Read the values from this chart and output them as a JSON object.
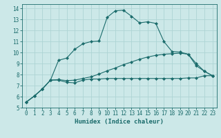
{
  "xlabel": "Humidex (Indice chaleur)",
  "background_color": "#cce8e8",
  "line_color": "#1a6b6b",
  "grid_color": "#add4d4",
  "xlim": [
    -0.5,
    23.5
  ],
  "ylim": [
    5,
    14.4
  ],
  "xticks": [
    0,
    1,
    2,
    3,
    4,
    5,
    6,
    7,
    8,
    9,
    10,
    11,
    12,
    13,
    14,
    15,
    16,
    17,
    18,
    19,
    20,
    21,
    22,
    23
  ],
  "yticks": [
    5,
    6,
    7,
    8,
    9,
    10,
    11,
    12,
    13,
    14
  ],
  "line1_x": [
    0,
    1,
    2,
    3,
    4,
    5,
    6,
    7,
    8,
    9,
    10,
    11,
    12,
    13,
    14,
    15,
    16,
    17,
    18,
    19,
    20,
    21,
    22,
    23
  ],
  "line1_y": [
    5.5,
    6.05,
    6.7,
    7.5,
    7.5,
    7.3,
    7.25,
    7.5,
    7.6,
    7.6,
    7.65,
    7.65,
    7.65,
    7.65,
    7.65,
    7.65,
    7.65,
    7.65,
    7.65,
    7.65,
    7.7,
    7.7,
    7.9,
    7.9
  ],
  "line2_x": [
    0,
    1,
    2,
    3,
    4,
    5,
    6,
    7,
    8,
    9,
    10,
    11,
    12,
    13,
    14,
    15,
    16,
    17,
    18,
    19,
    20,
    21,
    22,
    23
  ],
  "line2_y": [
    5.5,
    6.05,
    6.7,
    7.5,
    7.55,
    7.45,
    7.5,
    7.65,
    7.8,
    8.05,
    8.35,
    8.6,
    8.9,
    9.15,
    9.4,
    9.6,
    9.75,
    9.85,
    9.9,
    9.95,
    9.85,
    9.0,
    8.3,
    7.9
  ],
  "line3_x": [
    0,
    1,
    2,
    3,
    4,
    5,
    6,
    7,
    8,
    9,
    10,
    11,
    12,
    13,
    14,
    15,
    16,
    17,
    18,
    19,
    20,
    21,
    22,
    23
  ],
  "line3_y": [
    5.5,
    6.05,
    6.7,
    7.5,
    9.3,
    9.5,
    10.3,
    10.8,
    11.0,
    11.05,
    13.2,
    13.8,
    13.85,
    13.3,
    12.7,
    12.8,
    12.65,
    11.0,
    10.1,
    10.05,
    9.85,
    8.8,
    8.3,
    7.9
  ],
  "xlabel_fontsize": 6.5,
  "tick_fontsize": 5.5
}
